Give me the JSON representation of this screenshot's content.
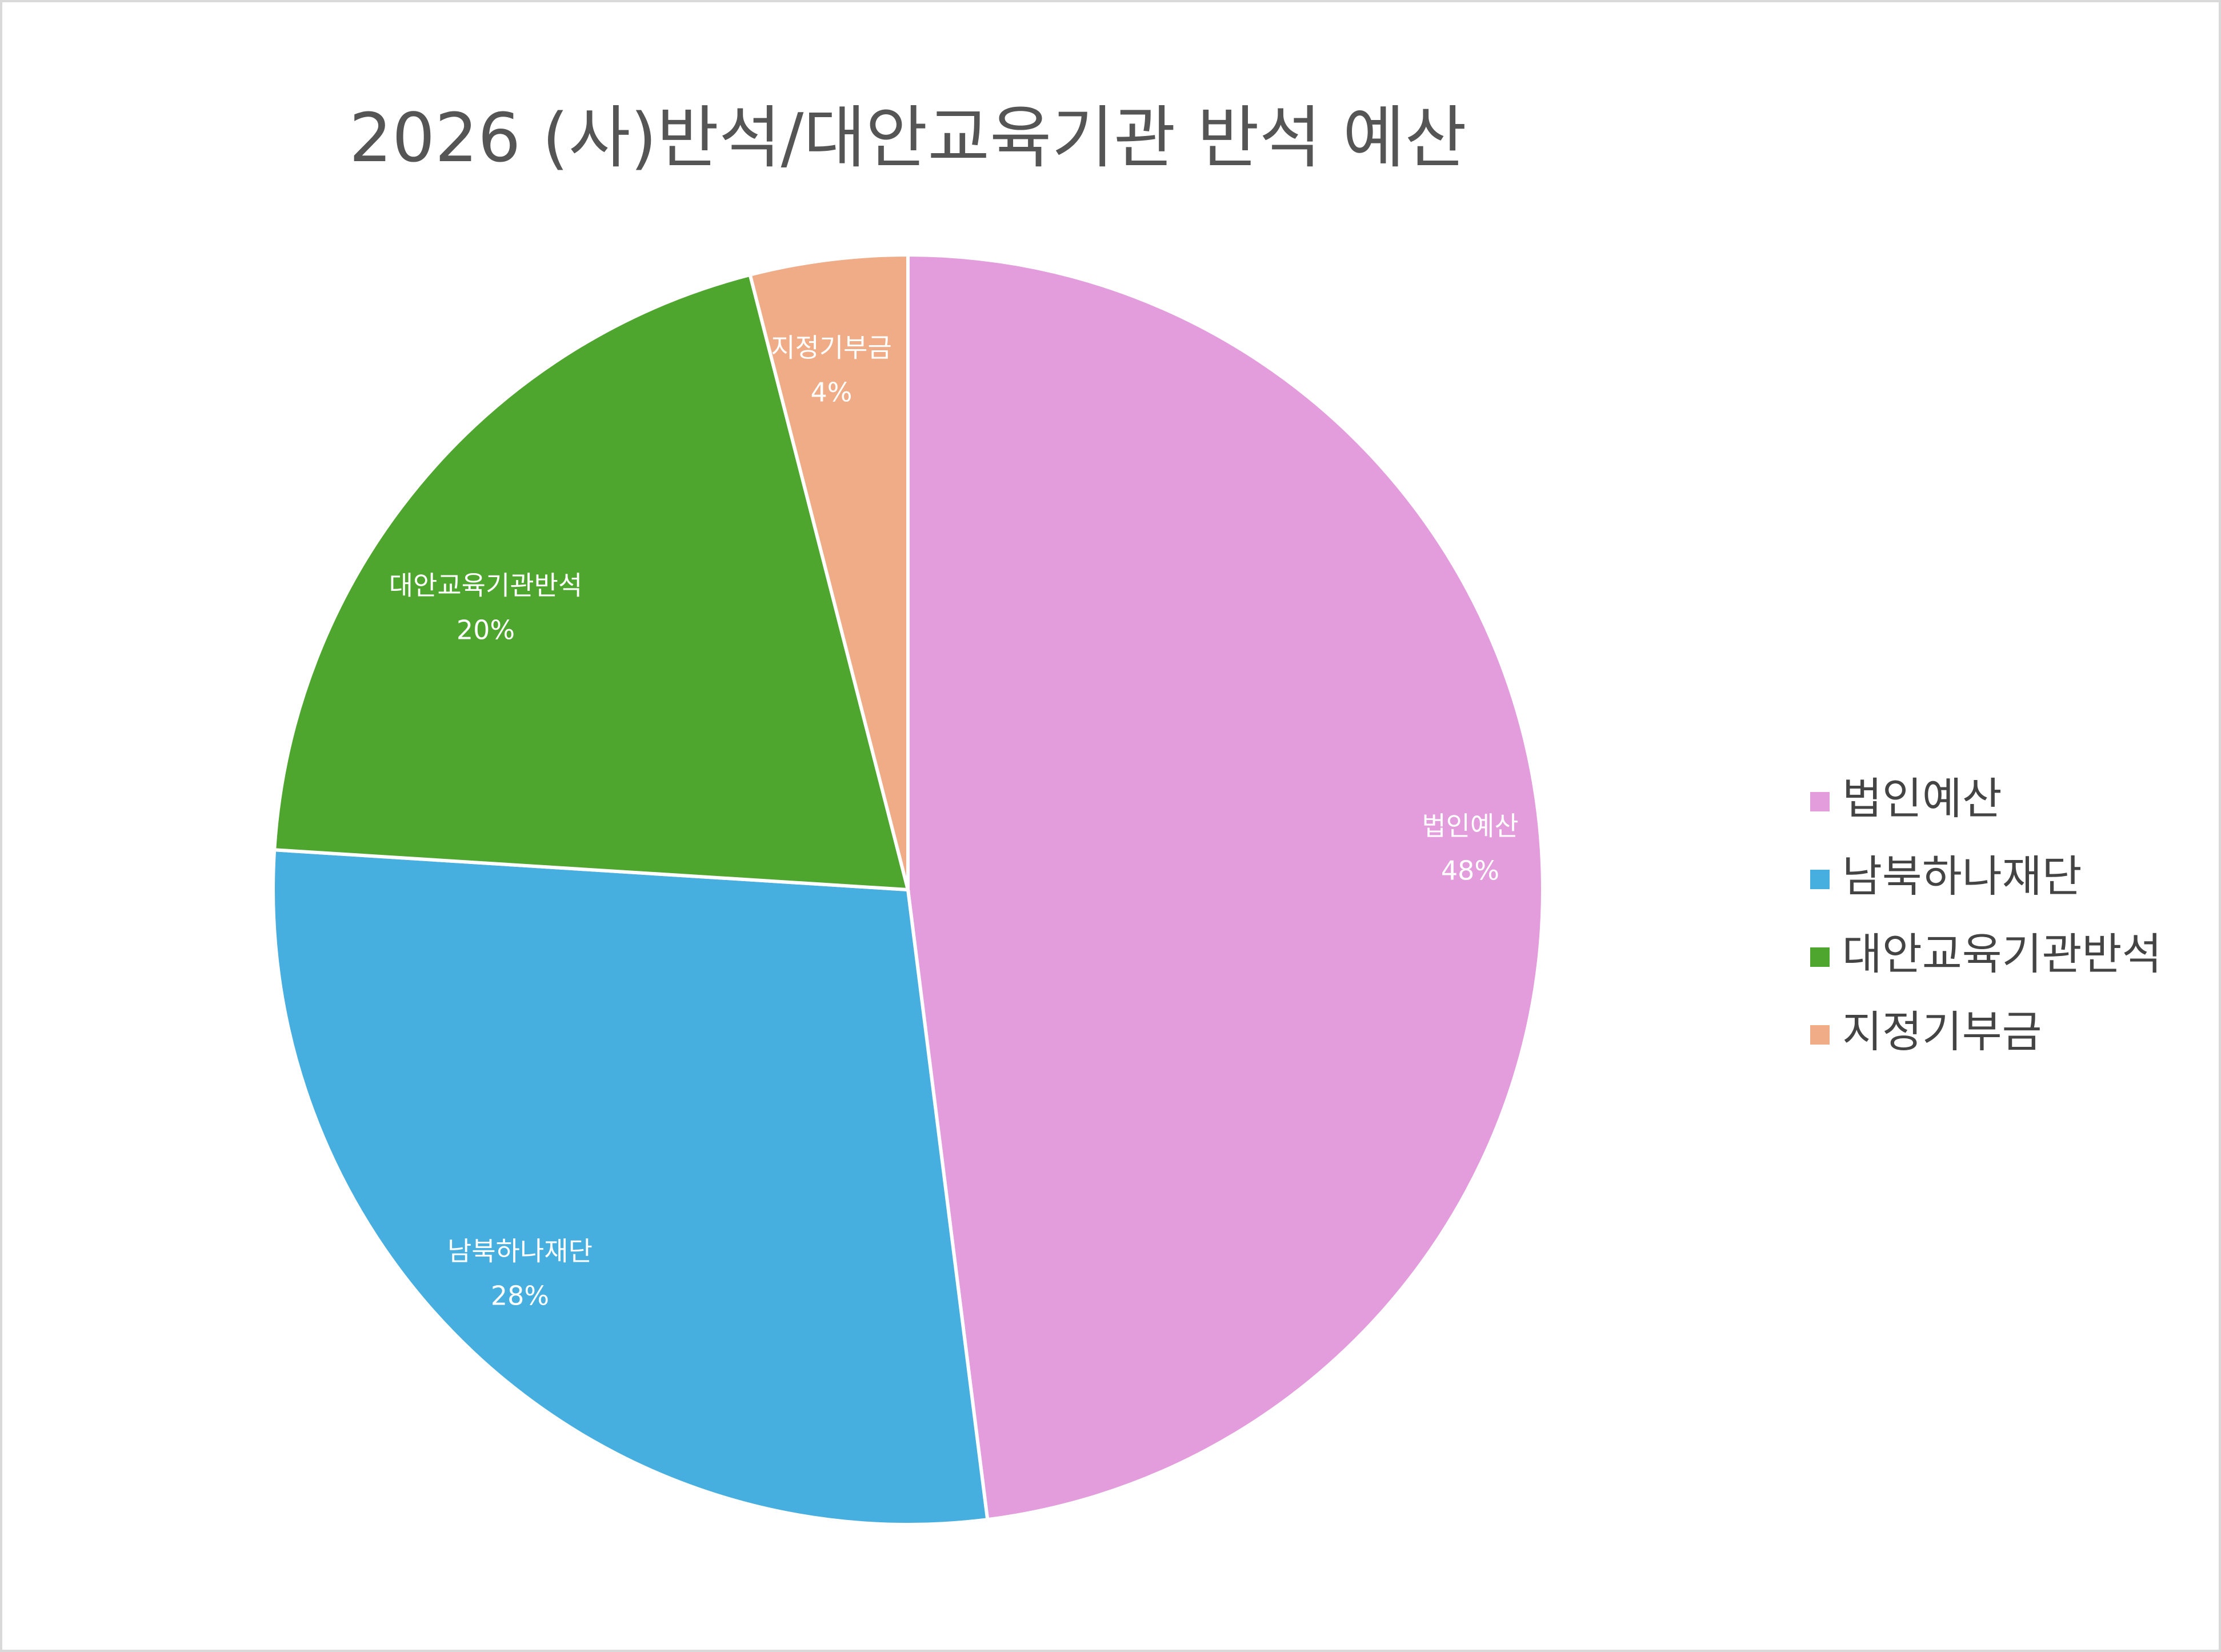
{
  "chart_data": {
    "type": "pie",
    "title": "2026 (사)반석/대안교육기관 반석 예산",
    "categories": [
      "법인예산",
      "남북하나재단",
      "대안교육기관반석",
      "지정기부금"
    ],
    "values": [
      48,
      28,
      20,
      4
    ],
    "value_labels": [
      "48%",
      "28%",
      "20%",
      "4%"
    ],
    "colors": [
      "#e39ddc",
      "#47afe0",
      "#4fa62f",
      "#f0ab87"
    ],
    "legend": "right"
  }
}
